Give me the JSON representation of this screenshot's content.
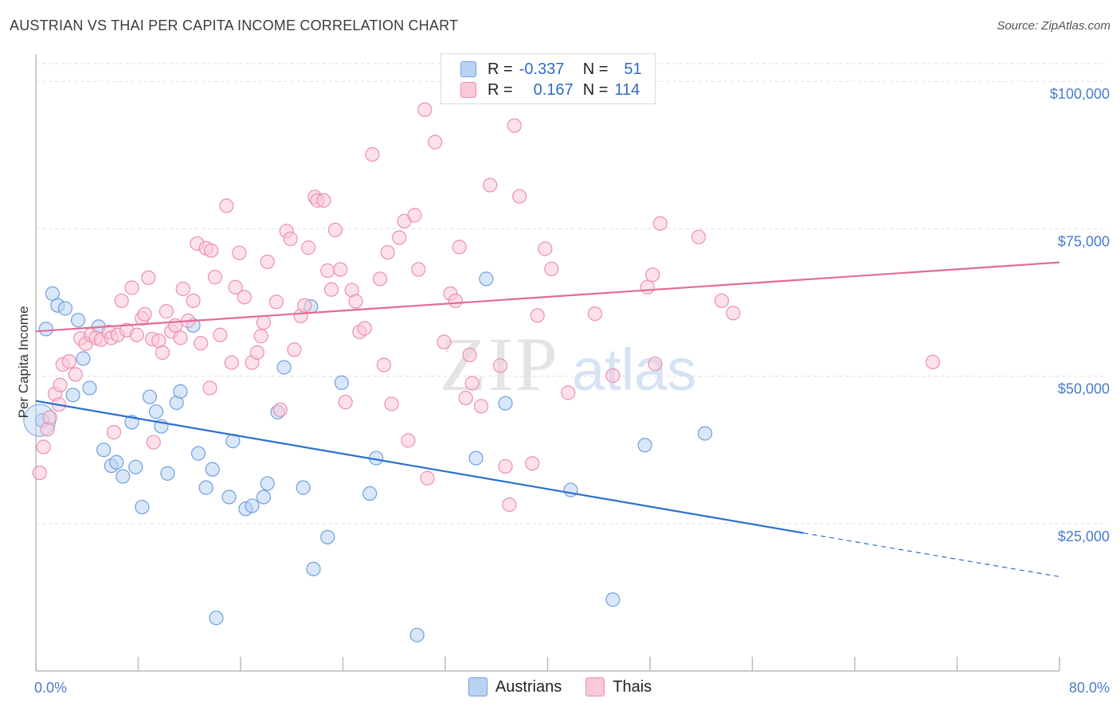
{
  "header": {
    "title": "AUSTRIAN VS THAI PER CAPITA INCOME CORRELATION CHART",
    "source": "Source: ZipAtlas.com"
  },
  "legend": {
    "rows": [
      {
        "r_label": "R =",
        "r_value": "-0.337",
        "n_label": "N =",
        "n_value": "51"
      },
      {
        "r_label": "R =",
        "r_value": "0.167",
        "n_label": "N =",
        "n_value": "114"
      }
    ]
  },
  "watermark": {
    "zip": "ZIP",
    "atlas": "atlas"
  },
  "colors": {
    "austrians_fill": "#b9d3f3",
    "austrians_stroke": "#6fa0e0",
    "austrians_line": "#2a6fd0",
    "thais_fill": "#f9c9d8",
    "thais_stroke": "#ec8fae",
    "thais_line": "#e36a97",
    "tick_label": "#4a7dc9",
    "grid": "#dddddd"
  },
  "chart_data": {
    "type": "scatter",
    "title": "AUSTRIAN VS THAI PER CAPITA INCOME CORRELATION CHART",
    "xlabel": "",
    "ylabel": "Per Capita Income",
    "xlim": [
      0,
      80
    ],
    "ylim": [
      0,
      103000
    ],
    "x_tick_labels": [
      "0.0%",
      "80.0%"
    ],
    "y_ticks": [
      25000,
      50000,
      75000,
      100000
    ],
    "y_tick_labels": [
      "$25,000",
      "$50,000",
      "$75,000",
      "$100,000"
    ],
    "grid": true,
    "legend_position": "top-center",
    "series": [
      {
        "name": "Austrians",
        "r": -0.337,
        "n": 51,
        "trend": {
          "x0": 0,
          "y0": 45800,
          "x1": 60,
          "y1": 23400,
          "dashed_to_x": 80,
          "dashed_to_y": 16000
        },
        "points": [
          [
            0.5,
            42500
          ],
          [
            1.3,
            64000
          ],
          [
            1.7,
            62000
          ],
          [
            0.8,
            58000
          ],
          [
            2.3,
            61500
          ],
          [
            3.3,
            59500
          ],
          [
            4.9,
            58400
          ],
          [
            3.7,
            53000
          ],
          [
            4.2,
            48000
          ],
          [
            2.9,
            46800
          ],
          [
            7.5,
            42200
          ],
          [
            8.9,
            46500
          ],
          [
            9.4,
            44000
          ],
          [
            9.8,
            41500
          ],
          [
            11.0,
            45500
          ],
          [
            11.3,
            47400
          ],
          [
            5.3,
            37500
          ],
          [
            5.9,
            34800
          ],
          [
            6.3,
            35400
          ],
          [
            6.8,
            33000
          ],
          [
            7.8,
            34600
          ],
          [
            8.3,
            27800
          ],
          [
            10.3,
            33500
          ],
          [
            12.7,
            36900
          ],
          [
            13.3,
            31100
          ],
          [
            13.8,
            34200
          ],
          [
            15.1,
            29500
          ],
          [
            15.4,
            39000
          ],
          [
            16.4,
            27500
          ],
          [
            16.9,
            28000
          ],
          [
            17.8,
            29500
          ],
          [
            18.1,
            31800
          ],
          [
            18.9,
            43900
          ],
          [
            19.4,
            51500
          ],
          [
            20.9,
            31100
          ],
          [
            22.8,
            22700
          ],
          [
            21.7,
            17300
          ],
          [
            14.1,
            9000
          ],
          [
            23.9,
            48900
          ],
          [
            26.1,
            30100
          ],
          [
            26.6,
            36100
          ],
          [
            29.8,
            6100
          ],
          [
            34.4,
            36100
          ],
          [
            35.2,
            66500
          ],
          [
            36.7,
            45400
          ],
          [
            41.8,
            30700
          ],
          [
            45.1,
            12100
          ],
          [
            47.6,
            38300
          ],
          [
            52.3,
            40300
          ],
          [
            12.3,
            58600
          ],
          [
            21.5,
            61800
          ]
        ]
      },
      {
        "name": "Thais",
        "r": 0.167,
        "n": 114,
        "trend": {
          "x0": 0,
          "y0": 57600,
          "x1": 80,
          "y1": 69300
        },
        "points": [
          [
            0.3,
            33600
          ],
          [
            0.6,
            38000
          ],
          [
            0.9,
            41000
          ],
          [
            1.1,
            43000
          ],
          [
            1.5,
            47000
          ],
          [
            1.9,
            48500
          ],
          [
            2.1,
            52000
          ],
          [
            2.6,
            52500
          ],
          [
            3.1,
            50300
          ],
          [
            3.5,
            56400
          ],
          [
            3.9,
            55500
          ],
          [
            4.3,
            57000
          ],
          [
            4.7,
            56500
          ],
          [
            5.1,
            56200
          ],
          [
            5.7,
            57500
          ],
          [
            5.9,
            56500
          ],
          [
            6.4,
            57000
          ],
          [
            6.7,
            62800
          ],
          [
            7.1,
            57800
          ],
          [
            7.5,
            65000
          ],
          [
            7.9,
            57000
          ],
          [
            8.3,
            59800
          ],
          [
            8.5,
            60500
          ],
          [
            8.8,
            66700
          ],
          [
            9.1,
            56300
          ],
          [
            9.6,
            56000
          ],
          [
            9.9,
            54000
          ],
          [
            10.2,
            61000
          ],
          [
            10.6,
            57600
          ],
          [
            10.9,
            58600
          ],
          [
            11.3,
            56500
          ],
          [
            11.5,
            64800
          ],
          [
            11.9,
            59400
          ],
          [
            12.3,
            62800
          ],
          [
            12.6,
            72500
          ],
          [
            12.9,
            55600
          ],
          [
            13.3,
            71700
          ],
          [
            13.7,
            71300
          ],
          [
            14.0,
            66800
          ],
          [
            14.4,
            57000
          ],
          [
            14.9,
            78900
          ],
          [
            15.3,
            52300
          ],
          [
            15.6,
            65100
          ],
          [
            15.9,
            70900
          ],
          [
            16.3,
            63400
          ],
          [
            16.9,
            52300
          ],
          [
            17.3,
            54000
          ],
          [
            17.6,
            56800
          ],
          [
            17.8,
            59100
          ],
          [
            18.1,
            69400
          ],
          [
            18.8,
            62600
          ],
          [
            19.1,
            44300
          ],
          [
            19.6,
            74600
          ],
          [
            19.9,
            73300
          ],
          [
            20.2,
            54500
          ],
          [
            20.7,
            60200
          ],
          [
            21.0,
            62000
          ],
          [
            21.3,
            71800
          ],
          [
            21.8,
            80400
          ],
          [
            22.0,
            79800
          ],
          [
            22.5,
            79800
          ],
          [
            22.8,
            67900
          ],
          [
            23.1,
            64700
          ],
          [
            23.4,
            74800
          ],
          [
            23.8,
            68100
          ],
          [
            24.2,
            45600
          ],
          [
            24.7,
            64600
          ],
          [
            25.0,
            62700
          ],
          [
            25.3,
            57500
          ],
          [
            25.7,
            58100
          ],
          [
            26.3,
            87600
          ],
          [
            26.9,
            66500
          ],
          [
            27.2,
            51900
          ],
          [
            27.5,
            71000
          ],
          [
            27.8,
            45300
          ],
          [
            28.4,
            73500
          ],
          [
            28.8,
            76300
          ],
          [
            29.1,
            39100
          ],
          [
            29.6,
            77300
          ],
          [
            29.9,
            68100
          ],
          [
            30.4,
            95200
          ],
          [
            30.6,
            32700
          ],
          [
            31.2,
            89700
          ],
          [
            31.9,
            55800
          ],
          [
            32.4,
            64000
          ],
          [
            32.8,
            62800
          ],
          [
            33.1,
            71900
          ],
          [
            33.6,
            46300
          ],
          [
            33.9,
            53600
          ],
          [
            34.1,
            48800
          ],
          [
            34.8,
            44900
          ],
          [
            35.5,
            82400
          ],
          [
            36.3,
            51800
          ],
          [
            36.7,
            34700
          ],
          [
            37.0,
            28200
          ],
          [
            37.4,
            92500
          ],
          [
            37.8,
            80500
          ],
          [
            38.8,
            35200
          ],
          [
            39.2,
            60300
          ],
          [
            39.8,
            71600
          ],
          [
            40.3,
            68200
          ],
          [
            41.6,
            47200
          ],
          [
            43.7,
            60600
          ],
          [
            45.1,
            50100
          ],
          [
            47.8,
            65100
          ],
          [
            48.2,
            67200
          ],
          [
            48.4,
            52100
          ],
          [
            48.8,
            75900
          ],
          [
            51.8,
            73600
          ],
          [
            53.6,
            62800
          ],
          [
            54.5,
            60700
          ],
          [
            70.1,
            52400
          ],
          [
            1.8,
            45200
          ],
          [
            6.1,
            40500
          ],
          [
            13.6,
            48000
          ],
          [
            9.2,
            38800
          ]
        ]
      }
    ]
  }
}
